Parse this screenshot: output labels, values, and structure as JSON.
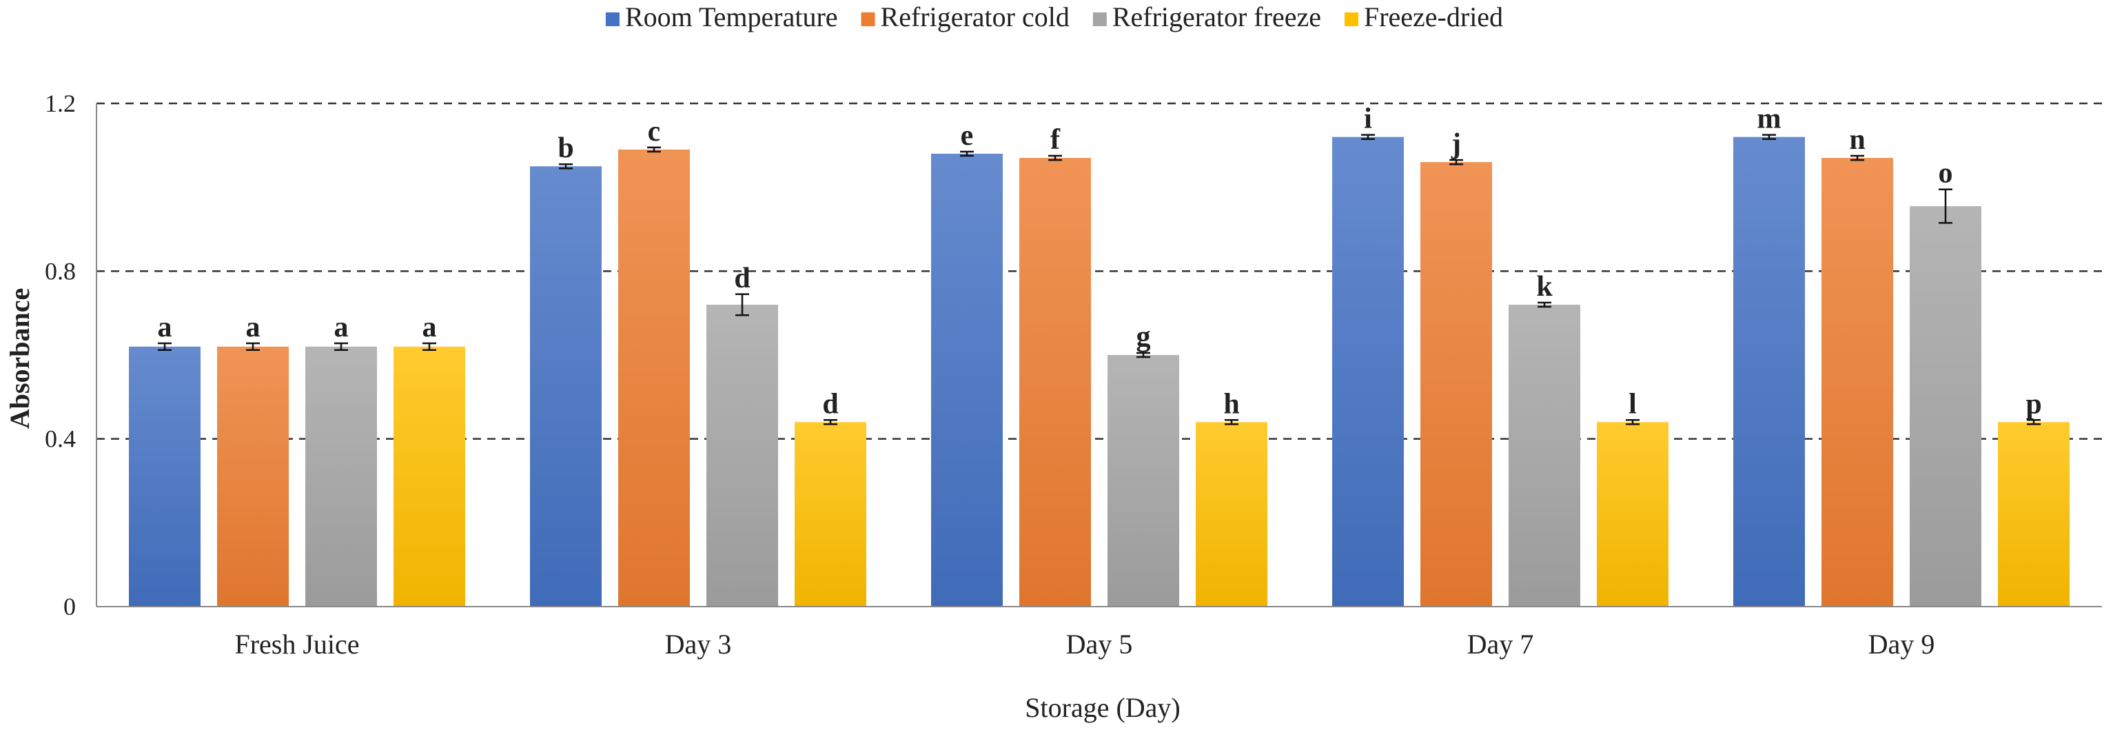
{
  "chart_data": {
    "type": "bar",
    "title": "",
    "xlabel": "Storage (Day)",
    "ylabel": "Absorbance",
    "ylim": [
      0,
      1.2
    ],
    "yticks": [
      0,
      0.4,
      0.8,
      1.2
    ],
    "ytick_labels": [
      "0",
      "0.4",
      "0.8",
      "1.2"
    ],
    "grid": "dashed horizontal",
    "legend_position": "top",
    "categories": [
      "Fresh Juice",
      "Day 3",
      "Day 5",
      "Day 7",
      "Day 9"
    ],
    "series": [
      {
        "name": "Room Temperature",
        "color": "#4472C4",
        "values": [
          0.62,
          1.05,
          1.08,
          1.12,
          1.12
        ],
        "errors": [
          0.008,
          0.005,
          0.005,
          0.005,
          0.005
        ],
        "labels": [
          "a",
          "b",
          "e",
          "i",
          "m"
        ]
      },
      {
        "name": "Refrigerator cold",
        "color": "#ED7D31",
        "values": [
          0.62,
          1.09,
          1.07,
          1.06,
          1.07
        ],
        "errors": [
          0.008,
          0.005,
          0.005,
          0.005,
          0.005
        ],
        "labels": [
          "a",
          "c",
          "f",
          "j",
          "n"
        ]
      },
      {
        "name": "Refrigerator freeze",
        "color": "#A5A5A5",
        "values": [
          0.62,
          0.72,
          0.6,
          0.72,
          0.955
        ],
        "errors": [
          0.008,
          0.025,
          0.005,
          0.005,
          0.04
        ],
        "labels": [
          "a",
          "d",
          "g",
          "k",
          "o"
        ]
      },
      {
        "name": "Freeze-dried",
        "color": "#FFC000",
        "values": [
          0.62,
          0.44,
          0.44,
          0.44,
          0.44
        ],
        "errors": [
          0.008,
          0.005,
          0.005,
          0.005,
          0.005
        ],
        "labels": [
          "a",
          "d",
          "h",
          "l",
          "p"
        ]
      }
    ]
  }
}
